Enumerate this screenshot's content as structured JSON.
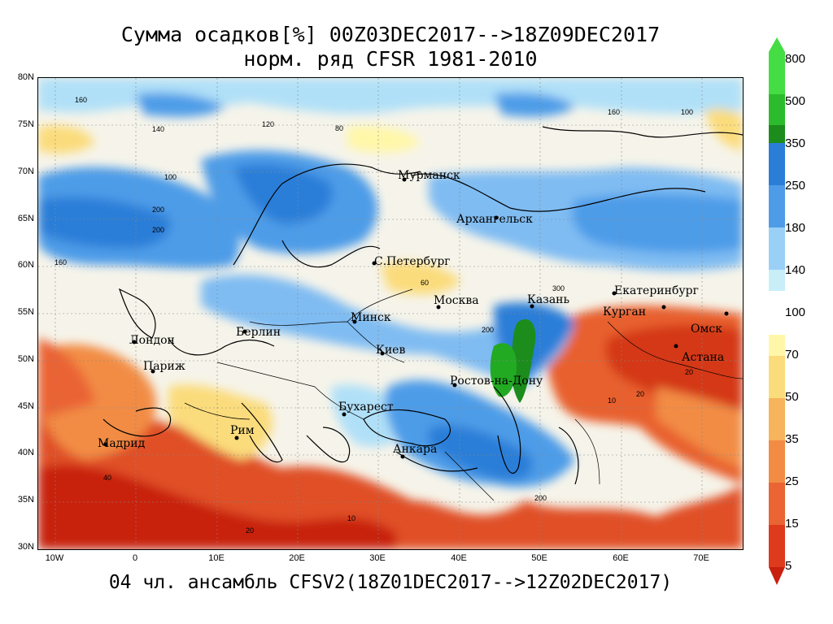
{
  "title_line1": "Сумма осадков[%] 00Z03DEC2017-->18Z09DEC2017",
  "title_line2": "норм. ряд CFSR 1981-2010",
  "subtitle": "04 чл. ансамбль CFSV2(18Z01DEC2017-->12Z02DEC2017)",
  "lat_labels": [
    "80N",
    "75N",
    "70N",
    "65N",
    "60N",
    "55N",
    "50N",
    "45N",
    "40N",
    "35N",
    "30N"
  ],
  "lon_labels": [
    "10W",
    "0",
    "10E",
    "20E",
    "30E",
    "40E",
    "50E",
    "60E",
    "70E"
  ],
  "colorbar": {
    "labels": [
      "800",
      "500",
      "350",
      "250",
      "180",
      "140",
      "100",
      "70",
      "50",
      "35",
      "25",
      "15",
      "5"
    ],
    "colors_upper": [
      "#44dd44",
      "#22aa22",
      "#1c8c1c",
      "#2a7ed8",
      "#4e9ce8",
      "#7fbcf2",
      "#b0e0f8"
    ],
    "colors_lower": [
      "#fff7a8",
      "#fbdc7c",
      "#f7b45c",
      "#f28c44",
      "#ea6434",
      "#de3a1c",
      "#c8200e"
    ]
  },
  "cities": [
    {
      "name": "Мурманск"
    },
    {
      "name": "Архангельск"
    },
    {
      "name": "С.Петербург"
    },
    {
      "name": "Москва"
    },
    {
      "name": "Казань"
    },
    {
      "name": "Екатеринбург"
    },
    {
      "name": "Курган"
    },
    {
      "name": "Омск"
    },
    {
      "name": "Астана"
    },
    {
      "name": "Минск"
    },
    {
      "name": "Берлин"
    },
    {
      "name": "Лондон"
    },
    {
      "name": "Париж"
    },
    {
      "name": "Киев"
    },
    {
      "name": "Ростов-на-Дону"
    },
    {
      "name": "Бухарест"
    },
    {
      "name": "Рим"
    },
    {
      "name": "Мадрид"
    },
    {
      "name": "Анкара"
    }
  ],
  "contour_labels": [
    "160",
    "140",
    "120",
    "100",
    "80",
    "60",
    "40",
    "20",
    "10",
    "200",
    "300"
  ]
}
